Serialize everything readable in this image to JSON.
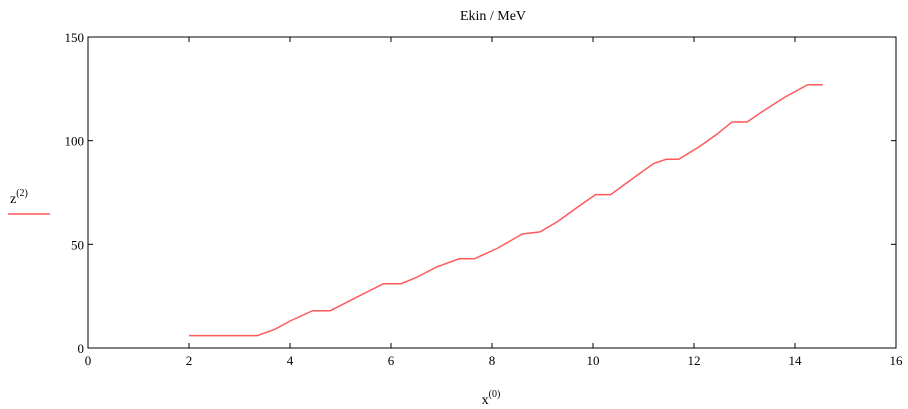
{
  "chart_data": {
    "type": "line",
    "title": "Ekin / MeV",
    "xlabel": {
      "base": "x",
      "sup": "(0)"
    },
    "ylabel": {
      "base": "z",
      "sup": "(2)"
    },
    "xlim": [
      0,
      16
    ],
    "ylim": [
      0,
      150
    ],
    "xticks": [
      "0",
      "2",
      "4",
      "6",
      "8",
      "10",
      "12",
      "14",
      "16"
    ],
    "yticks": [
      "0",
      "50",
      "100",
      "150"
    ],
    "grid": false,
    "legend": "left",
    "series": [
      {
        "color": "#ff5a5a",
        "x": [
          2.0,
          3.35,
          3.7,
          4.0,
          4.45,
          4.8,
          5.2,
          5.85,
          6.2,
          6.5,
          6.9,
          7.35,
          7.65,
          8.1,
          8.6,
          8.95,
          9.3,
          9.7,
          10.05,
          10.35,
          10.8,
          11.2,
          11.45,
          11.7,
          12.1,
          12.45,
          12.75,
          13.05,
          13.35,
          13.8,
          14.25,
          14.55
        ],
        "y": [
          6,
          6,
          9,
          13,
          18,
          18,
          23,
          31,
          31,
          34,
          39,
          43,
          43,
          48,
          55,
          56,
          61,
          68,
          74,
          74,
          82,
          89,
          91,
          91,
          97,
          103,
          109,
          109,
          114,
          121,
          127,
          127
        ]
      }
    ]
  }
}
